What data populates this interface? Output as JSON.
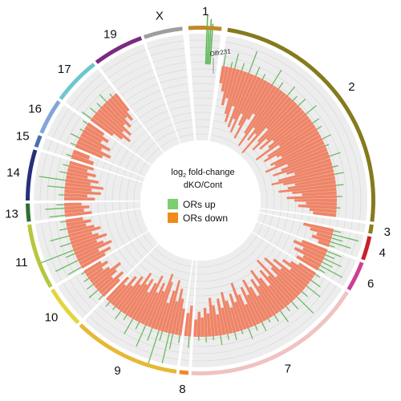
{
  "chart_data": {
    "type": "circos",
    "title_parts": {
      "prefix": "log",
      "subscript": "2",
      "suffix": " fold-change",
      "line2": "dKO/Cont"
    },
    "legend": [
      {
        "label": "ORs up",
        "color": "#7ccf6e"
      },
      {
        "label": "ORs down",
        "color": "#f08060"
      }
    ],
    "annotation": {
      "label": "Olfr231",
      "chromosome": "1"
    },
    "colors": {
      "up": "#5fb858",
      "down": "#ef8467",
      "track_bg": "#ededed",
      "track_line": "#d6d6d6",
      "chrom_gap": "#ffffff"
    },
    "chromosomes": [
      {
        "name": "1",
        "start_deg": -4,
        "end_deg": 7,
        "color": "#c08a2a",
        "down": [],
        "up": []
      },
      {
        "name": "2",
        "start_deg": 9,
        "end_deg": 97,
        "color": "#857a1e",
        "down": [
          0.9,
          1.3,
          2.0,
          1.6,
          2.4,
          2.8,
          1.9,
          3.0,
          2.5,
          3.2,
          2.1,
          2.7,
          3.4,
          2.2,
          1.8,
          2.9,
          3.6,
          2.4,
          3.1,
          2.6,
          3.8,
          2.0,
          2.8,
          3.3,
          2.4,
          3.0,
          2.2,
          2.6,
          3.5,
          2.1,
          2.9,
          3.2,
          2.5,
          2.3,
          3.0,
          2.8,
          3.4,
          2.2,
          2.6,
          3.1,
          2.4,
          2.0,
          2.9,
          3.3,
          2.7,
          2.1,
          2.5,
          3.0,
          2.3,
          1.8,
          2.6,
          2.2,
          1.6,
          2.0,
          1.4,
          1.2
        ],
        "up": [
          0.6,
          0,
          0.3,
          0.8,
          0,
          0.4,
          0,
          1.2,
          0,
          0.5,
          0,
          0.3,
          0,
          0,
          0.9,
          0,
          0.4,
          0,
          0,
          0.6,
          0,
          0.3,
          0,
          0.5,
          0,
          0,
          0.7,
          0,
          0,
          0.4,
          0,
          0.3,
          0,
          0,
          0.5,
          0,
          0.2,
          0,
          0,
          0.6,
          0,
          0,
          0.3,
          0,
          0.5,
          0,
          0,
          0.4,
          0,
          0,
          0.3,
          0,
          0,
          0.2,
          0,
          0
        ]
      },
      {
        "name": "3",
        "start_deg": 98,
        "end_deg": 101,
        "color": "#8b7c1f",
        "down": [],
        "up": []
      },
      {
        "name": "4",
        "start_deg": 102,
        "end_deg": 110,
        "color": "#c8202a",
        "down": [
          1.6,
          1.2,
          0.8,
          1.0,
          0.6
        ],
        "up": [
          0.4,
          1.4,
          0.6,
          1.1,
          0.3
        ]
      },
      {
        "name": "6",
        "start_deg": 111,
        "end_deg": 121,
        "color": "#cc3f93",
        "down": [
          1.4,
          1.8,
          1.2,
          1.6,
          1.0,
          1.3
        ],
        "up": [
          0.8,
          0.5,
          1.0,
          0.6,
          1.3,
          0.4
        ]
      },
      {
        "name": "7",
        "start_deg": 122,
        "end_deg": 183,
        "color": "#f0c2c2",
        "down": [
          1.0,
          1.4,
          1.8,
          1.2,
          2.2,
          1.6,
          2.6,
          2.0,
          1.5,
          2.8,
          1.8,
          2.3,
          1.4,
          2.0,
          2.6,
          1.7,
          2.2,
          1.3,
          1.9,
          2.4,
          1.6,
          2.1,
          1.2,
          1.8,
          2.5,
          1.5,
          2.0,
          1.3,
          1.7,
          2.2,
          1.4,
          1.9,
          1.1,
          1.6,
          2.0,
          1.2,
          1.5,
          1.0,
          1.3,
          0.9
        ],
        "up": [
          0.3,
          0,
          0.6,
          0,
          0.9,
          0,
          0.4,
          0,
          1.2,
          0,
          0.5,
          0,
          0.3,
          0,
          0.7,
          0,
          0.4,
          0,
          0.2,
          0,
          0.5,
          0,
          0.3,
          0,
          0.6,
          0,
          0.2,
          0,
          0.4,
          0,
          0.3,
          0,
          0.5,
          0,
          0.2,
          0,
          0.3,
          0,
          0.2,
          0
        ]
      },
      {
        "name": "8",
        "start_deg": 184,
        "end_deg": 187,
        "color": "#f0872a",
        "down": [
          1.6,
          1.2
        ],
        "up": [
          0.6,
          0
        ]
      },
      {
        "name": "9",
        "start_deg": 188,
        "end_deg": 224,
        "color": "#e6b836",
        "down": [
          1.4,
          1.9,
          2.4,
          1.7,
          2.8,
          2.2,
          1.5,
          2.6,
          3.0,
          2.0,
          2.4,
          1.8,
          2.7,
          2.2,
          1.6,
          2.3,
          1.9,
          2.5,
          1.7,
          2.1,
          1.4,
          1.9,
          1.2,
          1.6
        ],
        "up": [
          0.4,
          0,
          0.8,
          1.6,
          0,
          0.5,
          2.0,
          0,
          0.7,
          0,
          1.2,
          0,
          0.4,
          0,
          0.9,
          0,
          0.3,
          0,
          0.5,
          0,
          0.2,
          0,
          0.3,
          0
        ]
      },
      {
        "name": "10",
        "start_deg": 225,
        "end_deg": 239,
        "color": "#e2d63a",
        "down": [
          1.2,
          1.6,
          1.0,
          1.4,
          1.8,
          1.2,
          0.9,
          1.3,
          1.0
        ],
        "up": [
          0.3,
          0,
          0.6,
          0,
          0.4,
          0,
          0.3,
          0,
          0.2
        ]
      },
      {
        "name": "11",
        "start_deg": 240,
        "end_deg": 262,
        "color": "#b6c73e",
        "down": [
          1.4,
          1.8,
          1.2,
          2.0,
          1.6,
          1.3,
          1.9,
          1.5,
          1.2,
          1.7,
          1.4,
          1.0,
          1.3,
          0.9
        ],
        "up": [
          0.8,
          0,
          1.3,
          0,
          0.5,
          1.8,
          0,
          0.6,
          0,
          1.0,
          0,
          0.4,
          0,
          0.3
        ]
      },
      {
        "name": "13",
        "start_deg": 263,
        "end_deg": 269,
        "color": "#2e6e32",
        "down": [
          1.4,
          1.0,
          1.3,
          0.9
        ],
        "up": [
          0.8,
          0,
          1.0,
          0.4
        ]
      },
      {
        "name": "14",
        "start_deg": 270,
        "end_deg": 287,
        "color": "#26307a",
        "down": [
          1.6,
          1.2,
          1.9,
          1.4,
          2.0,
          1.3,
          1.7,
          1.1,
          1.5,
          1.0,
          1.3
        ],
        "up": [
          0,
          0.3,
          0,
          0.9,
          0,
          1.4,
          0,
          0.4,
          0,
          0.3,
          0
        ]
      },
      {
        "name": "15",
        "start_deg": 288,
        "end_deg": 292,
        "color": "#4a6fb3",
        "down": [
          1.2,
          0.9
        ],
        "up": [
          0.3,
          0
        ]
      },
      {
        "name": "16",
        "start_deg": 293,
        "end_deg": 305,
        "color": "#7fa6d6",
        "down": [
          1.5,
          1.9,
          1.3,
          1.7,
          1.1,
          1.4,
          1.0
        ],
        "up": [
          0.3,
          0,
          0.5,
          0,
          0.2,
          0,
          0.3
        ]
      },
      {
        "name": "17",
        "start_deg": 306,
        "end_deg": 322,
        "color": "#6ec7d0",
        "down": [
          1.4,
          1.9,
          2.3,
          1.7,
          2.1,
          1.5,
          1.8,
          1.3,
          1.6,
          1.1
        ],
        "up": [
          0.6,
          0,
          0.4,
          0,
          0.3,
          0,
          0.5,
          0,
          0.2,
          0
        ]
      },
      {
        "name": "19",
        "start_deg": 323,
        "end_deg": 340,
        "color": "#7a2a80",
        "down": [],
        "up": []
      },
      {
        "name": "X",
        "start_deg": 341,
        "end_deg": 354,
        "color": "#9e9e9e",
        "down": [],
        "up": []
      }
    ],
    "olfr231_up_peak": 2.6,
    "ylim": [
      -3.8,
      3.0
    ]
  }
}
